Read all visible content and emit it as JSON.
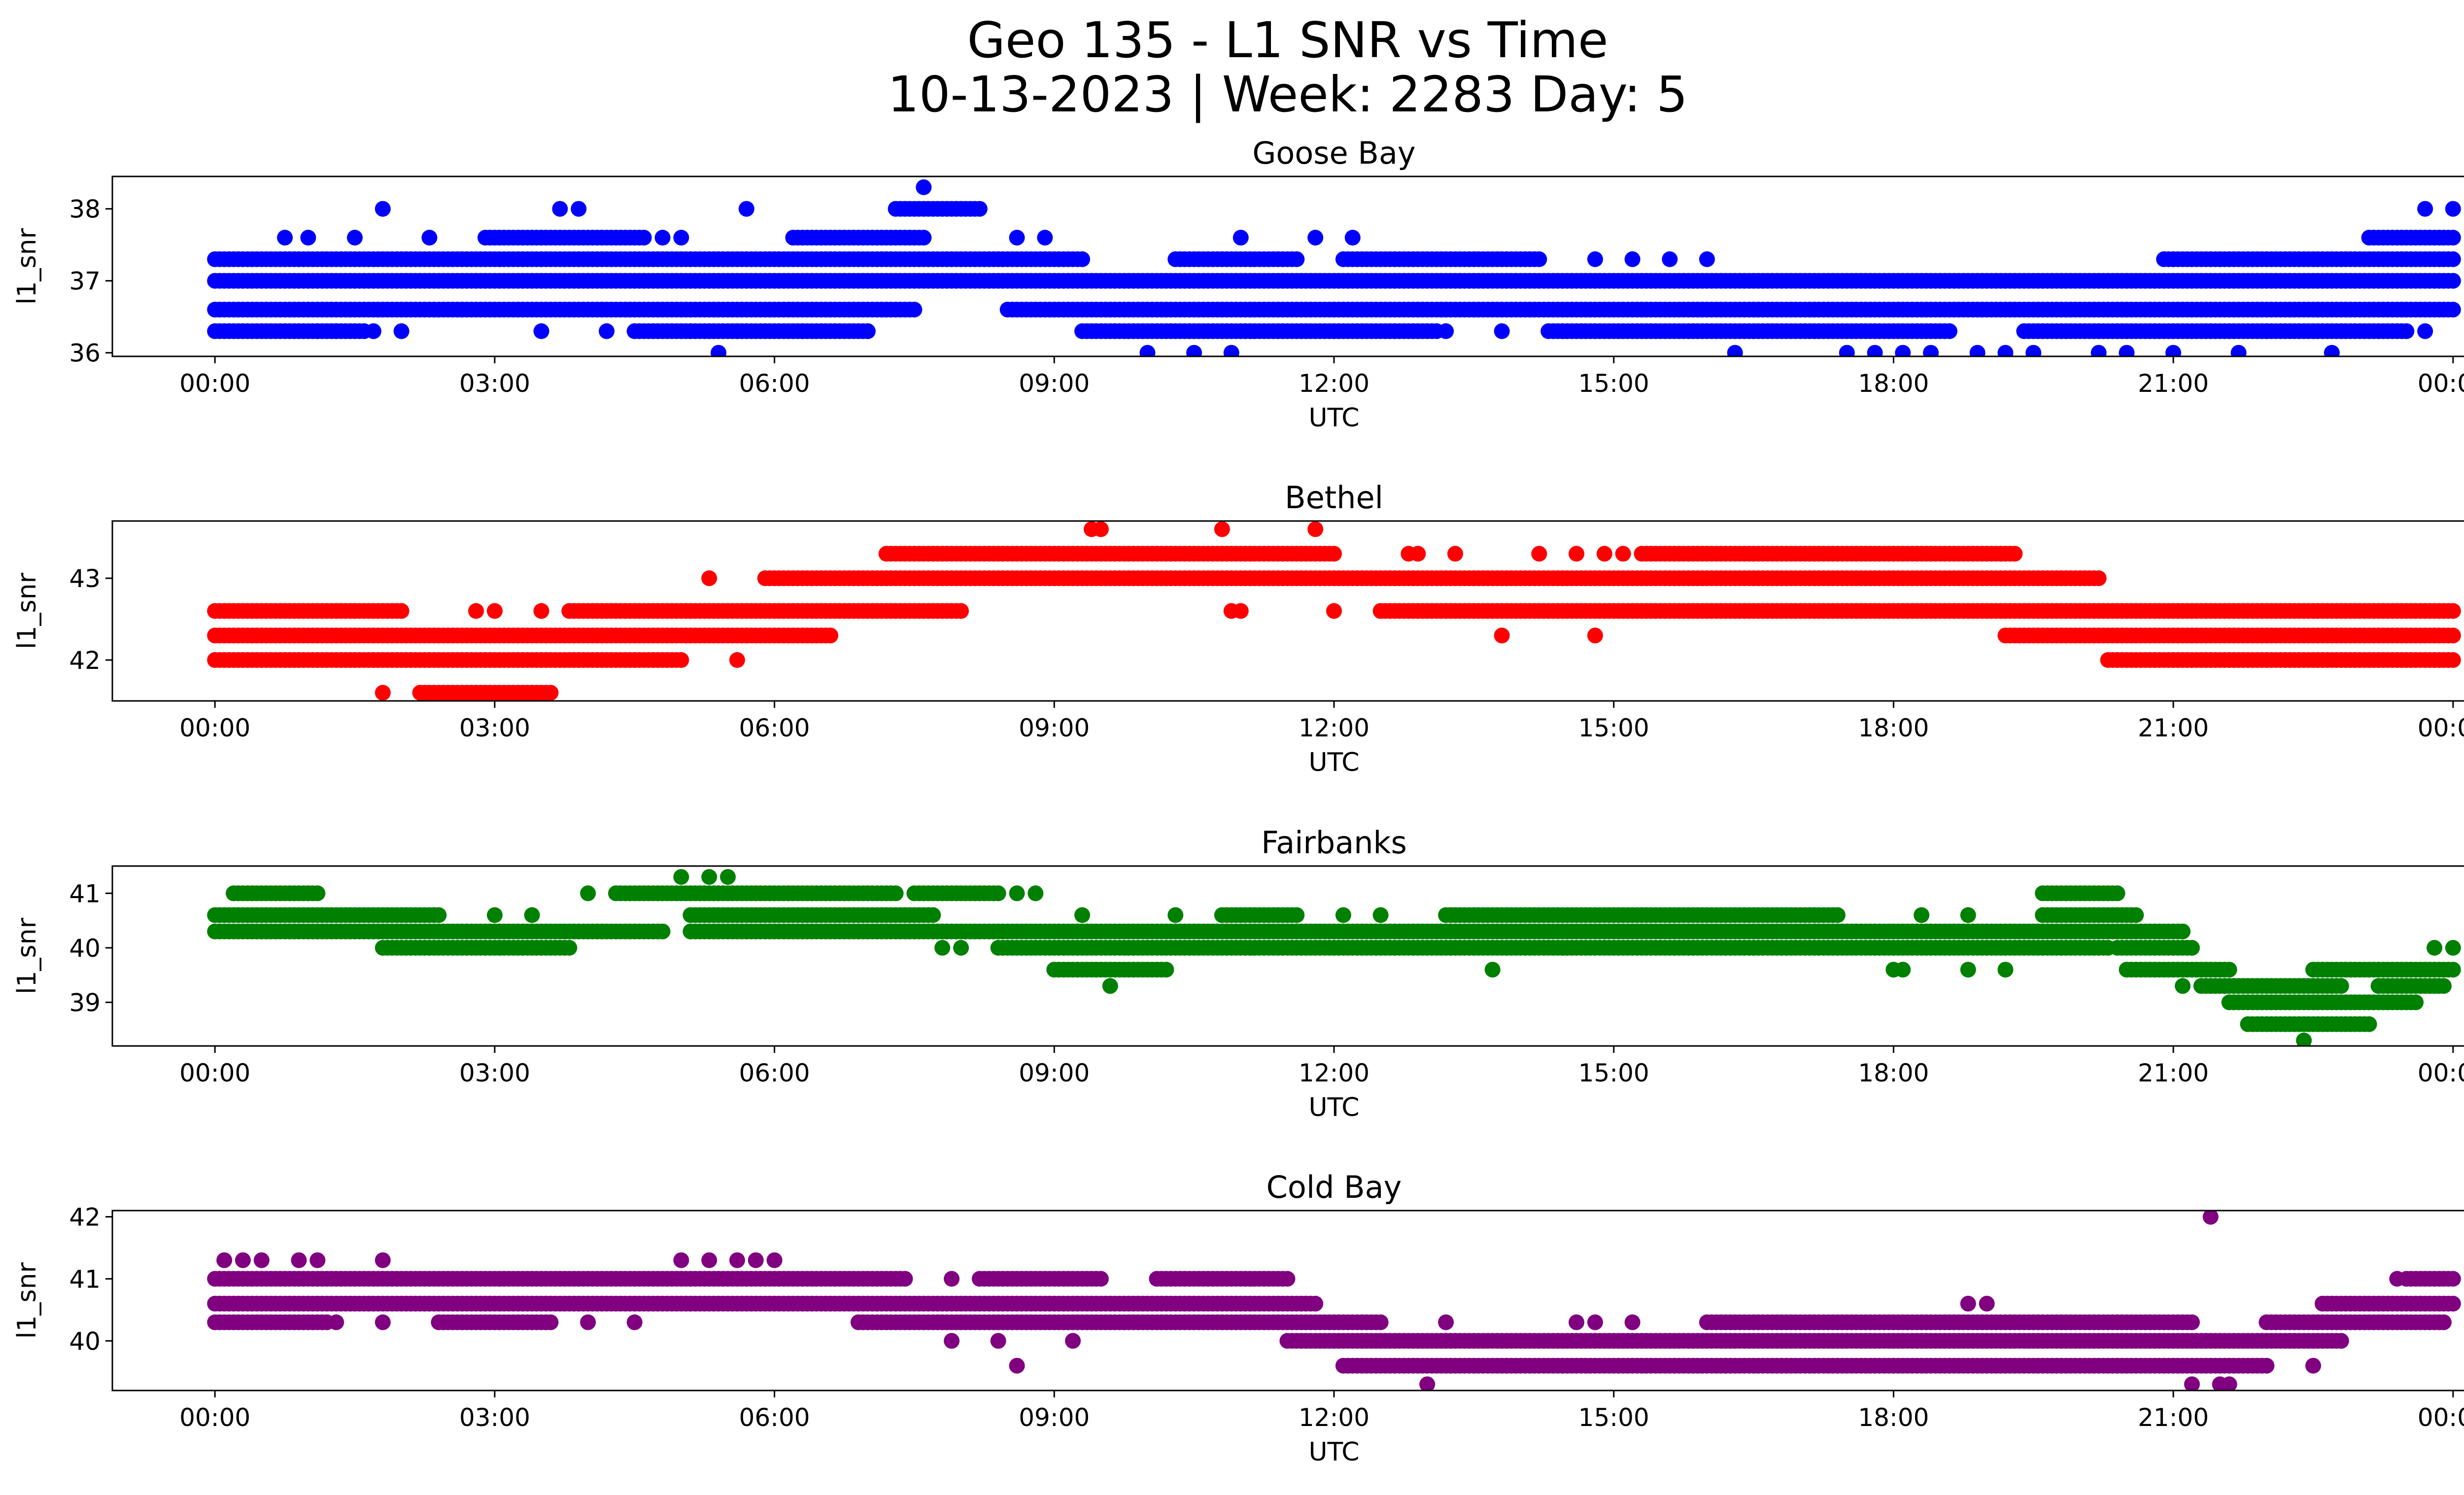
{
  "figure": {
    "title_line1": "Geo 135 - L1 SNR vs Time",
    "title_line2": "10-13-2023 | Week: 2283 Day: 5"
  },
  "chart_data": [
    {
      "type": "scatter",
      "title": "Goose Bay",
      "xlabel": "UTC",
      "ylabel": "l1_snr",
      "color": "#0000ff",
      "xlim_hours": [
        -1.1,
        25.1
      ],
      "ylim": [
        35.95,
        38.45
      ],
      "yticks": [
        36,
        37,
        38
      ],
      "xticks": [
        "00:00",
        "03:00",
        "06:00",
        "09:00",
        "12:00",
        "15:00",
        "18:00",
        "21:00",
        "00:00"
      ],
      "levels": [
        36.0,
        36.3,
        36.6,
        37.0,
        37.3,
        37.6,
        38.0,
        38.3
      ],
      "bands": [
        {
          "y": 37.0,
          "ranges": [
            [
              0,
              24
            ]
          ]
        },
        {
          "y": 36.6,
          "ranges": [
            [
              0,
              7.5
            ],
            [
              8.5,
              24
            ]
          ]
        },
        {
          "y": 37.3,
          "ranges": [
            [
              0,
              9.3
            ],
            [
              10.3,
              11.6
            ],
            [
              12.1,
              14.2
            ],
            [
              20.9,
              24
            ]
          ]
        },
        {
          "y": 36.3,
          "ranges": [
            [
              0,
              1.6
            ],
            [
              4.5,
              7.0
            ],
            [
              9.3,
              13.1
            ],
            [
              14.3,
              18.6
            ],
            [
              19.4,
              23.5
            ]
          ]
        },
        {
          "y": 37.6,
          "ranges": [
            [
              2.9,
              4.6
            ],
            [
              6.2,
              7.6
            ],
            [
              23.1,
              24
            ]
          ]
        },
        {
          "y": 38.0,
          "ranges": [
            [
              7.3,
              8.2
            ]
          ]
        }
      ],
      "points": [
        [
          0.75,
          37.6
        ],
        [
          1.0,
          37.6
        ],
        [
          1.5,
          37.6
        ],
        [
          1.8,
          38.0
        ],
        [
          2.3,
          37.6
        ],
        [
          3.7,
          38.0
        ],
        [
          3.9,
          38.0
        ],
        [
          4.8,
          37.6
        ],
        [
          5.0,
          37.6
        ],
        [
          5.7,
          38.0
        ],
        [
          8.6,
          37.6
        ],
        [
          8.9,
          37.6
        ],
        [
          11.0,
          37.6
        ],
        [
          11.8,
          37.6
        ],
        [
          12.2,
          37.6
        ],
        [
          14.8,
          37.3
        ],
        [
          15.2,
          37.3
        ],
        [
          15.6,
          37.3
        ],
        [
          16.0,
          37.3
        ],
        [
          21.0,
          37.3
        ],
        [
          21.5,
          37.3
        ],
        [
          1.1,
          36.3
        ],
        [
          1.3,
          36.3
        ],
        [
          1.7,
          36.3
        ],
        [
          2.0,
          36.3
        ],
        [
          3.5,
          36.3
        ],
        [
          4.2,
          36.3
        ],
        [
          5.6,
          36.3
        ],
        [
          6.3,
          36.3
        ],
        [
          7.0,
          36.3
        ],
        [
          13.2,
          36.3
        ],
        [
          13.8,
          36.3
        ],
        [
          22.0,
          36.3
        ],
        [
          23.7,
          36.3
        ],
        [
          5.4,
          36.0
        ],
        [
          10.0,
          36.0
        ],
        [
          10.5,
          36.0
        ],
        [
          10.9,
          36.0
        ],
        [
          16.3,
          36.0
        ],
        [
          17.5,
          36.0
        ],
        [
          17.8,
          36.0
        ],
        [
          18.1,
          36.0
        ],
        [
          18.4,
          36.0
        ],
        [
          18.9,
          36.0
        ],
        [
          19.2,
          36.0
        ],
        [
          19.5,
          36.0
        ],
        [
          20.2,
          36.0
        ],
        [
          20.5,
          36.0
        ],
        [
          21.0,
          36.0
        ],
        [
          21.7,
          36.0
        ],
        [
          22.7,
          36.0
        ],
        [
          7.6,
          38.3
        ],
        [
          23.7,
          38.0
        ],
        [
          24.0,
          38.0
        ]
      ]
    },
    {
      "type": "scatter",
      "title": "Bethel",
      "xlabel": "UTC",
      "ylabel": "l1_snr",
      "color": "#ff0000",
      "xlim_hours": [
        -1.1,
        25.1
      ],
      "ylim": [
        41.5,
        43.7
      ],
      "yticks": [
        42,
        43
      ],
      "xticks": [
        "00:00",
        "03:00",
        "06:00",
        "09:00",
        "12:00",
        "15:00",
        "18:00",
        "21:00",
        "00:00"
      ],
      "levels": [
        41.6,
        42.0,
        42.3,
        42.6,
        43.0,
        43.3,
        43.6
      ],
      "bands": [
        {
          "y": 42.3,
          "ranges": [
            [
              0,
              6.6
            ],
            [
              19.2,
              24
            ]
          ]
        },
        {
          "y": 42.0,
          "ranges": [
            [
              0,
              5.0
            ],
            [
              20.3,
              24
            ]
          ]
        },
        {
          "y": 42.6,
          "ranges": [
            [
              0,
              2.0
            ],
            [
              3.8,
              8.0
            ],
            [
              12.5,
              24
            ]
          ]
        },
        {
          "y": 43.0,
          "ranges": [
            [
              5.9,
              20.2
            ]
          ]
        },
        {
          "y": 43.3,
          "ranges": [
            [
              7.2,
              12.0
            ],
            [
              15.3,
              19.3
            ]
          ]
        },
        {
          "y": 41.6,
          "ranges": [
            [
              2.2,
              3.6
            ]
          ]
        }
      ],
      "points": [
        [
          1.8,
          41.6
        ],
        [
          5.3,
          43.0
        ],
        [
          5.6,
          42.0
        ],
        [
          9.4,
          43.6
        ],
        [
          9.5,
          43.6
        ],
        [
          10.8,
          43.6
        ],
        [
          11.8,
          43.6
        ],
        [
          10.9,
          42.6
        ],
        [
          11.0,
          42.6
        ],
        [
          12.0,
          42.6
        ],
        [
          12.8,
          43.3
        ],
        [
          12.9,
          43.3
        ],
        [
          13.3,
          43.3
        ],
        [
          14.2,
          43.3
        ],
        [
          14.6,
          43.3
        ],
        [
          14.9,
          43.3
        ],
        [
          15.1,
          43.3
        ],
        [
          13.8,
          42.3
        ],
        [
          14.8,
          42.3
        ],
        [
          2.8,
          42.6
        ],
        [
          3.0,
          42.6
        ],
        [
          3.5,
          42.6
        ],
        [
          1.5,
          42.6
        ]
      ]
    },
    {
      "type": "scatter",
      "title": "Fairbanks",
      "xlabel": "UTC",
      "ylabel": "l1_snr",
      "color": "#008000",
      "xlim_hours": [
        -1.1,
        25.1
      ],
      "ylim": [
        38.2,
        41.5
      ],
      "yticks": [
        39,
        40,
        41
      ],
      "xticks": [
        "00:00",
        "03:00",
        "06:00",
        "09:00",
        "12:00",
        "15:00",
        "18:00",
        "21:00",
        "00:00"
      ],
      "levels": [
        38.3,
        38.6,
        39.0,
        39.3,
        39.6,
        40.0,
        40.3,
        40.6,
        41.0,
        41.3
      ],
      "bands": [
        {
          "y": 40.3,
          "ranges": [
            [
              0,
              4.8
            ],
            [
              5.1,
              21.1
            ]
          ]
        },
        {
          "y": 40.6,
          "ranges": [
            [
              0,
              2.4
            ],
            [
              5.1,
              7.7
            ],
            [
              10.8,
              11.6
            ],
            [
              13.2,
              17.4
            ],
            [
              19.6,
              20.6
            ]
          ]
        },
        {
          "y": 41.0,
          "ranges": [
            [
              0.2,
              1.1
            ],
            [
              4.3,
              7.3
            ],
            [
              7.5,
              8.4
            ],
            [
              19.6,
              20.4
            ]
          ]
        },
        {
          "y": 40.0,
          "ranges": [
            [
              1.8,
              3.8
            ],
            [
              8.4,
              20.3
            ],
            [
              20.4,
              21.2
            ]
          ]
        },
        {
          "y": 39.6,
          "ranges": [
            [
              9.0,
              10.2
            ],
            [
              20.5,
              21.6
            ],
            [
              22.5,
              24
            ]
          ]
        },
        {
          "y": 39.3,
          "ranges": [
            [
              21.3,
              22.8
            ],
            [
              23.2,
              23.9
            ]
          ]
        },
        {
          "y": 39.0,
          "ranges": [
            [
              21.6,
              23.6
            ]
          ]
        },
        {
          "y": 38.6,
          "ranges": [
            [
              21.8,
              23.1
            ]
          ]
        }
      ],
      "points": [
        [
          5.0,
          41.3
        ],
        [
          5.3,
          41.3
        ],
        [
          5.5,
          41.3
        ],
        [
          8.6,
          41.0
        ],
        [
          8.8,
          41.0
        ],
        [
          7.8,
          40.0
        ],
        [
          8.0,
          40.0
        ],
        [
          9.6,
          39.3
        ],
        [
          13.7,
          39.6
        ],
        [
          18.0,
          39.6
        ],
        [
          18.1,
          39.6
        ],
        [
          18.8,
          39.6
        ],
        [
          19.2,
          39.6
        ],
        [
          21.1,
          39.3
        ],
        [
          22.4,
          38.3
        ],
        [
          23.8,
          40.0
        ],
        [
          24.0,
          40.0
        ],
        [
          3.0,
          40.6
        ],
        [
          3.4,
          40.6
        ],
        [
          4.0,
          41.0
        ],
        [
          9.3,
          40.6
        ],
        [
          10.3,
          40.6
        ],
        [
          12.1,
          40.6
        ],
        [
          12.5,
          40.6
        ],
        [
          18.3,
          40.6
        ],
        [
          18.8,
          40.6
        ]
      ]
    },
    {
      "type": "scatter",
      "title": "Cold Bay",
      "xlabel": "UTC",
      "ylabel": "l1_snr",
      "color": "#800080",
      "xlim_hours": [
        -1.1,
        25.1
      ],
      "ylim": [
        39.2,
        42.1
      ],
      "yticks": [
        40,
        41,
        42
      ],
      "xticks": [
        "00:00",
        "03:00",
        "06:00",
        "09:00",
        "12:00",
        "15:00",
        "18:00",
        "21:00",
        "00:00"
      ],
      "levels": [
        39.3,
        39.6,
        40.0,
        40.3,
        40.6,
        41.0,
        41.3,
        42.0
      ],
      "bands": [
        {
          "y": 40.6,
          "ranges": [
            [
              0,
              11.8
            ],
            [
              22.6,
              24
            ]
          ]
        },
        {
          "y": 41.0,
          "ranges": [
            [
              0,
              7.4
            ],
            [
              8.2,
              9.5
            ],
            [
              10.1,
              11.5
            ],
            [
              23.5,
              24
            ]
          ]
        },
        {
          "y": 40.3,
          "ranges": [
            [
              0,
              1.2
            ],
            [
              2.4,
              3.6
            ],
            [
              6.9,
              12.5
            ],
            [
              16.0,
              21.2
            ],
            [
              22.0,
              23.9
            ]
          ]
        },
        {
          "y": 40.0,
          "ranges": [
            [
              11.5,
              22.8
            ]
          ]
        },
        {
          "y": 39.6,
          "ranges": [
            [
              12.1,
              16.2
            ],
            [
              16.2,
              22.0
            ]
          ]
        }
      ],
      "points": [
        [
          0.1,
          41.3
        ],
        [
          0.3,
          41.3
        ],
        [
          0.5,
          41.3
        ],
        [
          0.9,
          41.3
        ],
        [
          1.1,
          41.3
        ],
        [
          1.8,
          41.3
        ],
        [
          5.0,
          41.3
        ],
        [
          5.3,
          41.3
        ],
        [
          5.6,
          41.3
        ],
        [
          5.8,
          41.3
        ],
        [
          6.0,
          41.3
        ],
        [
          1.3,
          40.3
        ],
        [
          1.8,
          40.3
        ],
        [
          4.0,
          40.3
        ],
        [
          4.5,
          40.3
        ],
        [
          7.9,
          41.0
        ],
        [
          7.9,
          40.0
        ],
        [
          8.4,
          40.0
        ],
        [
          8.6,
          39.6
        ],
        [
          9.2,
          40.0
        ],
        [
          13.0,
          39.3
        ],
        [
          13.2,
          40.3
        ],
        [
          14.6,
          40.3
        ],
        [
          14.8,
          40.3
        ],
        [
          15.2,
          40.3
        ],
        [
          18.8,
          40.6
        ],
        [
          19.0,
          40.6
        ],
        [
          21.4,
          42.0
        ],
        [
          21.2,
          39.3
        ],
        [
          21.5,
          39.3
        ],
        [
          21.6,
          39.3
        ],
        [
          22.5,
          39.6
        ],
        [
          23.4,
          41.0
        ]
      ]
    }
  ]
}
